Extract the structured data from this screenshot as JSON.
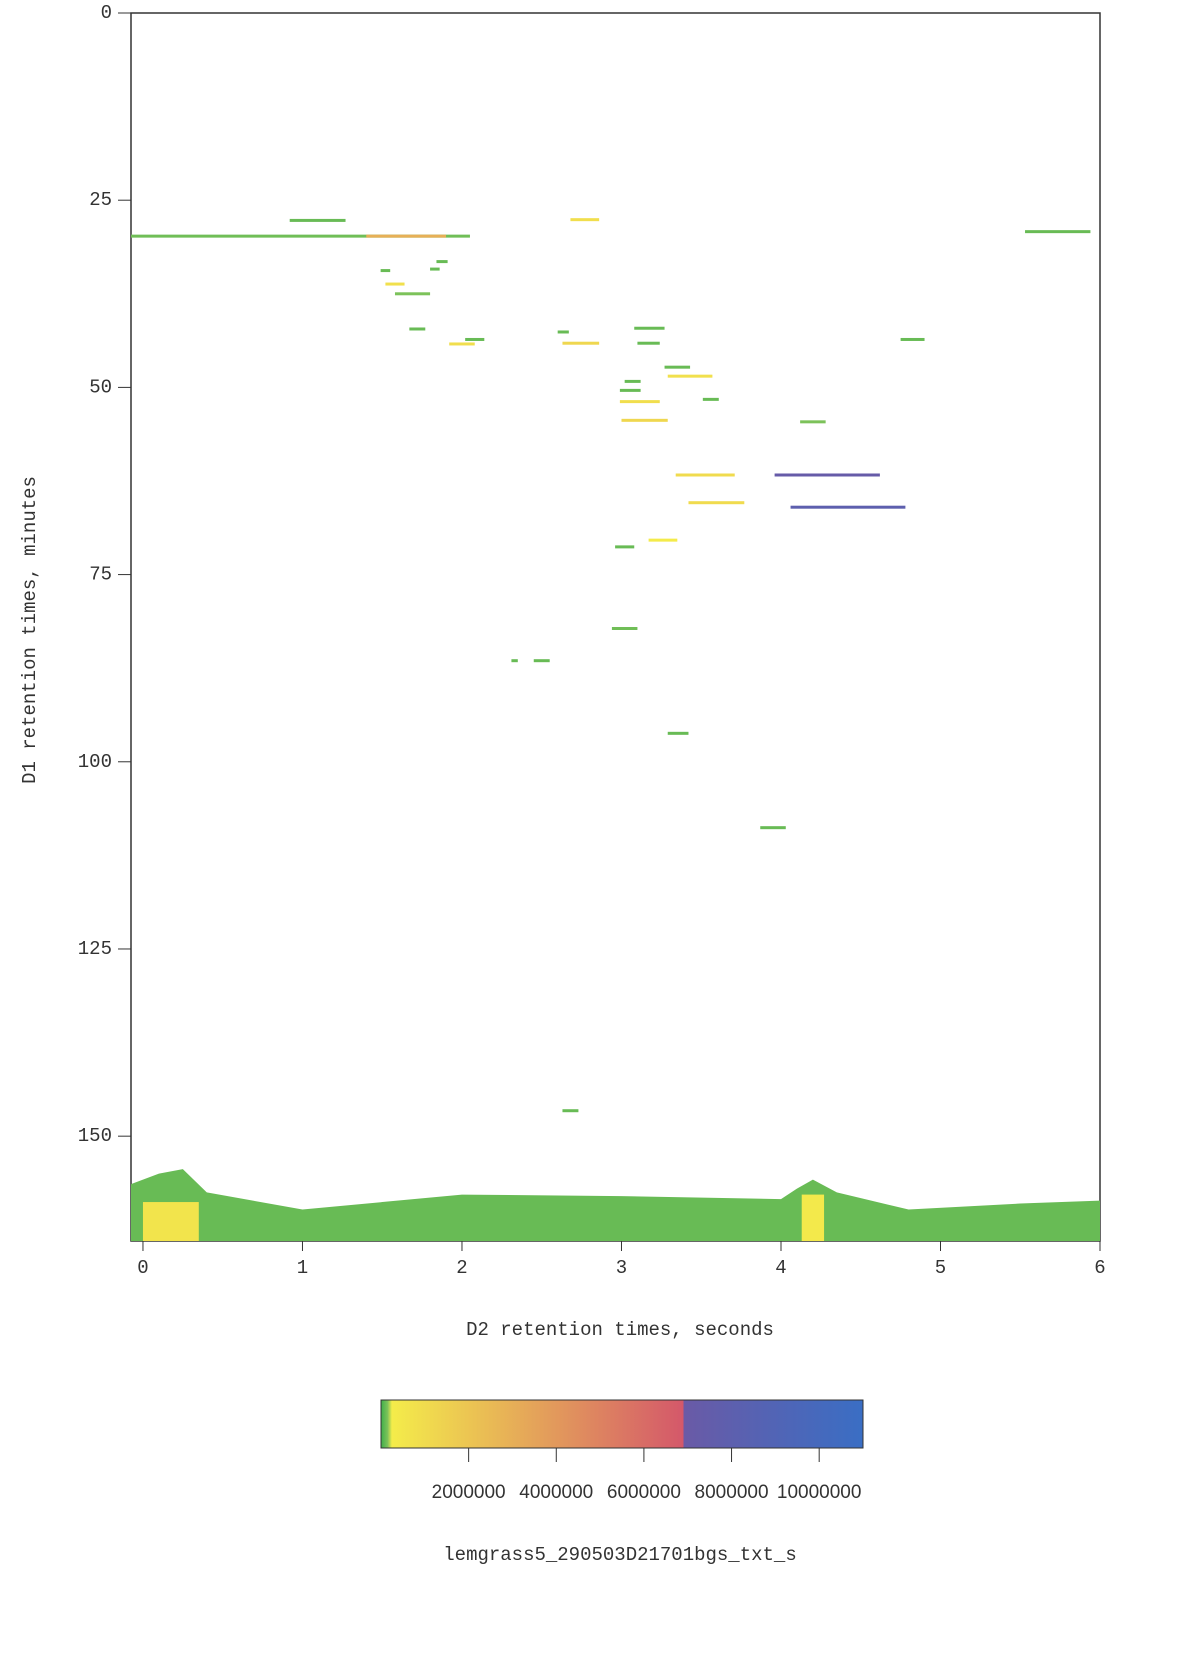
{
  "chart_data": {
    "type": "heatmap",
    "xlabel": "D2 retention times, seconds",
    "ylabel": "D1 retention times, minutes",
    "xlim": [
      -0.075,
      6
    ],
    "xticks": [
      0,
      1,
      2,
      3,
      4,
      5,
      6
    ],
    "ylim": [
      0,
      164
    ],
    "yticks": [
      0,
      25,
      50,
      75,
      100,
      125,
      150
    ],
    "y_inverted": true,
    "colorscale": [
      [
        0,
        "#3fae4a"
      ],
      [
        150000,
        "#7cc25a"
      ],
      [
        250000,
        "#f4ec4a"
      ],
      [
        6900000,
        "#d4586a"
      ],
      [
        6900000,
        "#6a5aa6"
      ],
      [
        11000000,
        "#3a6ec4"
      ]
    ],
    "colorbar": {
      "lim": [
        0,
        11000000
      ],
      "ticks": [
        2000000,
        4000000,
        6000000,
        8000000,
        10000000
      ],
      "caption": "lemgrass5_290503D21701bgs_txt_s"
    },
    "peaks": {
      "x_start": [
        -0.075,
        1.4,
        0.92,
        2.68,
        5.53,
        1.49,
        1.52,
        1.58,
        1.8,
        1.84,
        1.67,
        1.92,
        2.02,
        2.63,
        2.6,
        3.08,
        3.1,
        3.27,
        3.29,
        3.02,
        2.99,
        2.99,
        3.0,
        3.51,
        4.12,
        4.75,
        3.34,
        3.96,
        3.42,
        4.06,
        3.17,
        2.96,
        2.94,
        2.45,
        2.31,
        3.29,
        3.87,
        2.63
      ],
      "x_end": [
        2.05,
        1.9,
        1.27,
        2.86,
        5.94,
        1.55,
        1.64,
        1.8,
        1.86,
        1.91,
        1.77,
        2.08,
        2.14,
        2.86,
        2.67,
        3.27,
        3.24,
        3.43,
        3.57,
        3.12,
        3.12,
        3.24,
        3.29,
        3.61,
        4.28,
        4.9,
        3.71,
        4.62,
        3.77,
        4.78,
        3.35,
        3.08,
        3.1,
        2.55,
        2.35,
        3.42,
        4.03,
        2.73
      ],
      "y": [
        29.8,
        29.8,
        27.7,
        27.6,
        29.2,
        34.4,
        36.2,
        37.5,
        34.2,
        33.2,
        42.2,
        44.2,
        43.6,
        44.1,
        42.6,
        42.1,
        44.1,
        47.3,
        48.5,
        49.2,
        50.4,
        51.9,
        54.4,
        51.6,
        54.6,
        43.6,
        61.7,
        61.7,
        65.4,
        66.0,
        70.4,
        71.3,
        82.2,
        86.5,
        86.5,
        96.2,
        108.8,
        146.6
      ],
      "intensity": [
        120000,
        3000000,
        100000,
        900000,
        100000,
        100000,
        800000,
        150000,
        100000,
        100000,
        100000,
        900000,
        100000,
        1200000,
        100000,
        100000,
        100000,
        100000,
        800000,
        100000,
        100000,
        900000,
        1200000,
        100000,
        150000,
        100000,
        1000000,
        7200000,
        1000000,
        8000000,
        300000,
        100000,
        120000,
        100000,
        100000,
        100000,
        100000,
        100000
      ]
    },
    "background": {
      "x": [
        -0.075,
        0.1,
        0.25,
        0.4,
        1.0,
        2.0,
        3.0,
        4.0,
        4.1,
        4.2,
        4.35,
        4.8,
        5.5,
        6.0
      ],
      "y": [
        156.4,
        155.0,
        154.4,
        157.5,
        159.8,
        157.8,
        158.0,
        158.4,
        157.0,
        155.8,
        157.5,
        159.8,
        159.0,
        158.6
      ],
      "intensity": 100000
    },
    "spots": {
      "x_start": [
        0.0,
        4.13
      ],
      "x_end": [
        0.35,
        4.27
      ],
      "y_start": [
        158.8,
        157.8
      ],
      "y_end": [
        164,
        164
      ],
      "intensity": [
        600000,
        400000
      ]
    }
  }
}
